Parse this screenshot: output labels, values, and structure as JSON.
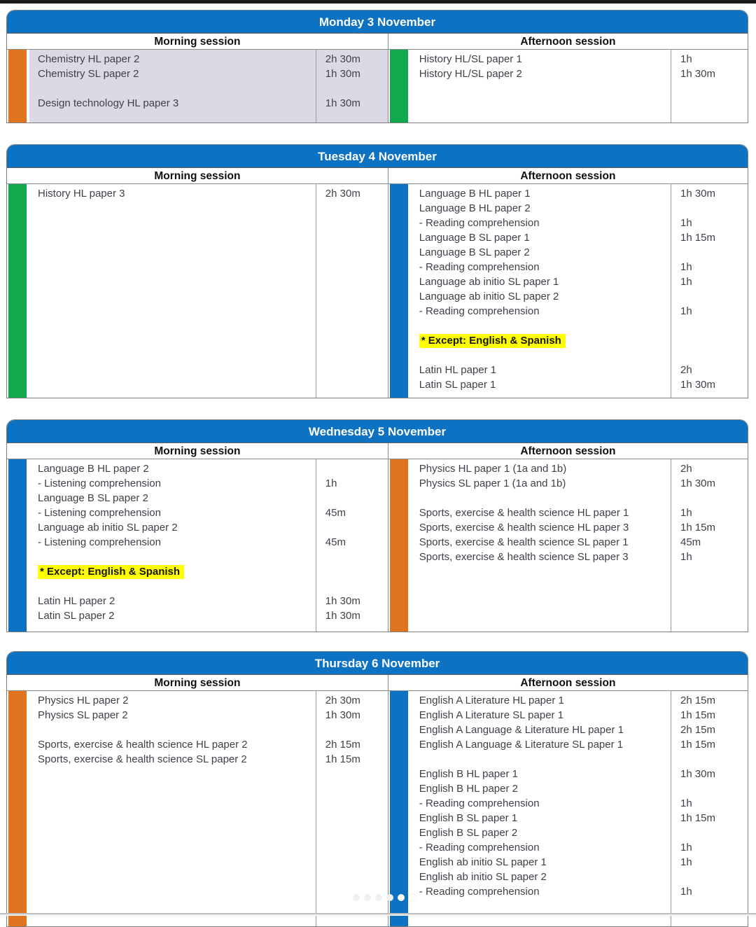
{
  "colors": {
    "header_blue": "#0d72c2",
    "orange": "#e0731d",
    "green": "#10a94e",
    "blue": "#0d72c2",
    "monday_morning_bg": "#dcd9e4",
    "highlight_yellow": "#ffff00"
  },
  "session_labels": {
    "morning": "Morning session",
    "afternoon": "Afternoon session"
  },
  "page_dots": {
    "count": 6,
    "bright_from": 4
  },
  "days": [
    {
      "title": "Monday 3 November",
      "morning": {
        "bar": "orange",
        "bg": "#dcd9e4",
        "rows": [
          {
            "subject": "Chemistry HL paper 2",
            "duration": "2h 30m"
          },
          {
            "subject": "Chemistry SL paper 2",
            "duration": "1h 30m"
          },
          {
            "subject": "",
            "duration": ""
          },
          {
            "subject": "Design technology HL paper 3",
            "duration": "1h 30m"
          }
        ]
      },
      "afternoon": {
        "bar": "green",
        "bg": "#ffffff",
        "rows": [
          {
            "subject": "History HL/SL paper 1",
            "duration": "1h"
          },
          {
            "subject": "History HL/SL paper 2",
            "duration": "1h 30m"
          }
        ]
      }
    },
    {
      "title": "Tuesday 4 November",
      "morning": {
        "bar": "green",
        "bg": "#ffffff",
        "rows": [
          {
            "subject": "History HL paper 3",
            "duration": "2h 30m"
          }
        ]
      },
      "afternoon": {
        "bar": "blue",
        "bg": "#ffffff",
        "rows": [
          {
            "subject": "Language B HL paper 1",
            "duration": "1h 30m"
          },
          {
            "subject": "Language B HL paper 2",
            "duration": ""
          },
          {
            "subject": "- Reading comprehension",
            "duration": "1h"
          },
          {
            "subject": "Language B SL paper 1",
            "duration": "1h 15m"
          },
          {
            "subject": "Language B SL paper 2",
            "duration": ""
          },
          {
            "subject": "- Reading comprehension",
            "duration": "1h"
          },
          {
            "subject": "Language ab initio SL paper 1",
            "duration": "1h"
          },
          {
            "subject": "Language ab initio SL paper 2",
            "duration": ""
          },
          {
            "subject": "- Reading comprehension",
            "duration": "1h"
          },
          {
            "subject": "",
            "duration": ""
          },
          {
            "subject": "* Except: English & Spanish",
            "duration": "",
            "highlight": true
          },
          {
            "subject": "",
            "duration": ""
          },
          {
            "subject": "Latin HL paper 1",
            "duration": "2h"
          },
          {
            "subject": "Latin SL paper 1",
            "duration": "1h 30m"
          }
        ]
      }
    },
    {
      "title": "Wednesday 5 November",
      "morning": {
        "bar": "blue",
        "bg": "#ffffff",
        "rows": [
          {
            "subject": "Language B HL paper 2",
            "duration": ""
          },
          {
            "subject": "- Listening comprehension",
            "duration": "1h"
          },
          {
            "subject": "Language B SL paper 2",
            "duration": ""
          },
          {
            "subject": "- Listening comprehension",
            "duration": "45m"
          },
          {
            "subject": "Language ab initio SL paper 2",
            "duration": ""
          },
          {
            "subject": "- Listening comprehension",
            "duration": "45m"
          },
          {
            "subject": "",
            "duration": ""
          },
          {
            "subject": "* Except: English & Spanish",
            "duration": "",
            "highlight": true
          },
          {
            "subject": "",
            "duration": ""
          },
          {
            "subject": "Latin HL paper 2",
            "duration": "1h 30m"
          },
          {
            "subject": "Latin SL paper 2",
            "duration": "1h 30m"
          }
        ]
      },
      "afternoon": {
        "bar": "orange",
        "bg": "#ffffff",
        "rows": [
          {
            "subject": "Physics HL paper 1 (1a and 1b)",
            "duration": "2h"
          },
          {
            "subject": "Physics SL paper 1 (1a and 1b)",
            "duration": "1h 30m"
          },
          {
            "subject": "",
            "duration": ""
          },
          {
            "subject": "Sports, exercise & health science HL paper 1",
            "duration": "1h"
          },
          {
            "subject": "Sports, exercise & health science HL paper 3",
            "duration": "1h 15m"
          },
          {
            "subject": "Sports, exercise & health science SL paper 1",
            "duration": "45m"
          },
          {
            "subject": "Sports, exercise & health science SL paper 3",
            "duration": "1h"
          }
        ]
      }
    },
    {
      "title": "Thursday 6 November",
      "morning": {
        "bar": "orange",
        "bg": "#ffffff",
        "rows": [
          {
            "subject": "Physics HL paper 2",
            "duration": "2h 30m"
          },
          {
            "subject": "Physics SL paper 2",
            "duration": "1h 30m"
          },
          {
            "subject": "",
            "duration": ""
          },
          {
            "subject": "Sports, exercise & health science HL paper 2",
            "duration": "2h 15m"
          },
          {
            "subject": "Sports, exercise & health science SL paper 2",
            "duration": "1h 15m"
          }
        ]
      },
      "afternoon": {
        "bar": "blue",
        "bg": "#ffffff",
        "rows": [
          {
            "subject": "English A Literature HL paper 1",
            "duration": "2h 15m"
          },
          {
            "subject": "English A Literature SL paper 1",
            "duration": "1h 15m"
          },
          {
            "subject": "English A Language & Literature HL paper 1",
            "duration": "2h 15m"
          },
          {
            "subject": "English A Language & Literature SL paper 1",
            "duration": "1h 15m"
          },
          {
            "subject": "",
            "duration": ""
          },
          {
            "subject": "English B HL paper 1",
            "duration": "1h 30m"
          },
          {
            "subject": "English B HL paper 2",
            "duration": ""
          },
          {
            "subject": "- Reading comprehension",
            "duration": "1h"
          },
          {
            "subject": "English B SL paper 1",
            "duration": "1h 15m"
          },
          {
            "subject": "English B SL paper 2",
            "duration": ""
          },
          {
            "subject": "- Reading comprehension",
            "duration": "1h"
          },
          {
            "subject": "English ab initio SL paper 1",
            "duration": "1h"
          },
          {
            "subject": "English ab initio SL paper 2",
            "duration": ""
          },
          {
            "subject": "- Reading comprehension",
            "duration": "1h"
          }
        ]
      }
    }
  ]
}
